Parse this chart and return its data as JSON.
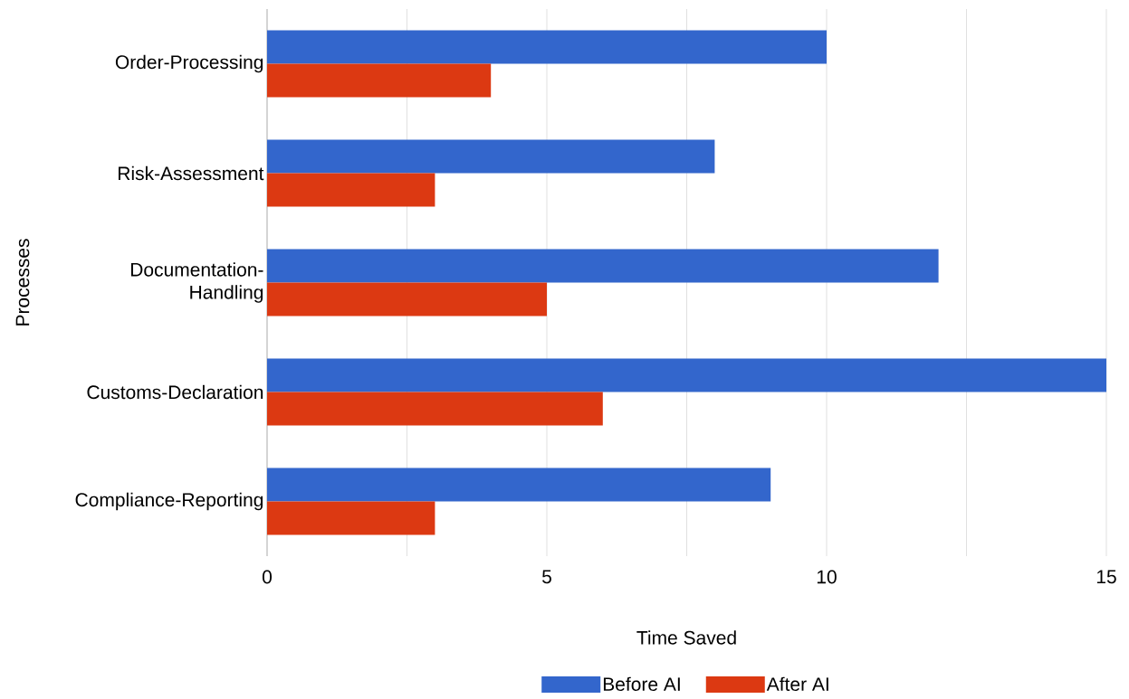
{
  "chart_data": {
    "type": "bar",
    "orientation": "horizontal",
    "xlabel": "Time Saved",
    "ylabel": "Processes",
    "categories": [
      "Order-Processing",
      "Risk-Assessment",
      "Documentation-Handling",
      "Customs-Declaration",
      "Compliance-Reporting"
    ],
    "series": [
      {
        "name": "Before AI",
        "color": "#3366cc",
        "values": [
          10,
          8,
          12,
          15,
          9
        ]
      },
      {
        "name": "After AI",
        "color": "#dc3912",
        "values": [
          4,
          3,
          5,
          6,
          3
        ]
      }
    ],
    "xlim": [
      0,
      15
    ],
    "xticks": [
      0,
      {
        "value": 2.5,
        "label": null
      },
      5,
      {
        "value": 7.5,
        "label": null
      },
      10,
      {
        "value": 12.5,
        "label": null
      },
      15
    ],
    "grid": "x",
    "legend": "bottom"
  }
}
